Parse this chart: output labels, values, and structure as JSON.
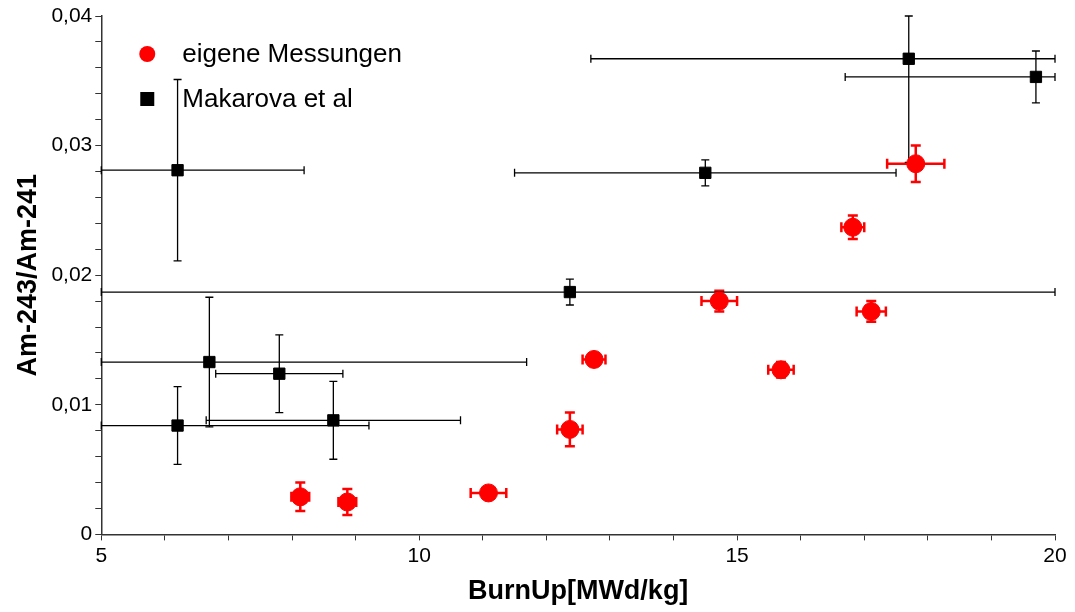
{
  "chart_data": {
    "type": "scatter",
    "xlabel": "BurnUp[MWd/kg]",
    "ylabel": "Am-243/Am-241",
    "xlim": [
      5,
      20
    ],
    "xticks": [
      5,
      {
        "value": 6,
        "label": null
      },
      {
        "value": 7,
        "label": null
      },
      {
        "value": 8,
        "label": null
      },
      {
        "value": 9,
        "label": null
      },
      10,
      {
        "value": 11,
        "label": null
      },
      {
        "value": 12,
        "label": null
      },
      {
        "value": 13,
        "label": null
      },
      {
        "value": 14,
        "label": null
      },
      15,
      {
        "value": 16,
        "label": null
      },
      {
        "value": 17,
        "label": null
      },
      {
        "value": 18,
        "label": null
      },
      {
        "value": 19,
        "label": null
      },
      20
    ],
    "ylim": [
      0,
      0.04
    ],
    "yticks": [
      {
        "value": 0,
        "label": "0"
      },
      {
        "value": 0.002,
        "label": null
      },
      {
        "value": 0.004,
        "label": null
      },
      {
        "value": 0.006,
        "label": null
      },
      {
        "value": 0.008,
        "label": null
      },
      {
        "value": 0.01,
        "label": "0,01"
      },
      {
        "value": 0.012,
        "label": null
      },
      {
        "value": 0.014,
        "label": null
      },
      {
        "value": 0.016,
        "label": null
      },
      {
        "value": 0.018,
        "label": null
      },
      {
        "value": 0.02,
        "label": "0,02"
      },
      {
        "value": 0.022,
        "label": null
      },
      {
        "value": 0.024,
        "label": null
      },
      {
        "value": 0.026,
        "label": null
      },
      {
        "value": 0.028,
        "label": null
      },
      {
        "value": 0.03,
        "label": "0,03"
      },
      {
        "value": 0.032,
        "label": null
      },
      {
        "value": 0.034,
        "label": null
      },
      {
        "value": 0.036,
        "label": null
      },
      {
        "value": 0.038,
        "label": null
      },
      {
        "value": 0.04,
        "label": "0,04"
      }
    ],
    "grid": false,
    "legend": "top left",
    "series": [
      {
        "name": "eigene Messungen",
        "color": "#ff0000",
        "marker": "circle",
        "x": [
          8.13,
          8.87,
          11.09,
          12.37,
          12.75,
          14.72,
          15.69,
          17.11,
          16.82,
          17.81
        ],
        "values": [
          0.0029,
          0.0025,
          0.0032,
          0.0081,
          0.0135,
          0.018,
          0.0127,
          0.0172,
          0.0237,
          0.0286
        ],
        "errors": [
          0.0011,
          0.001,
          null,
          0.0013,
          0.0005,
          0.0008,
          0.0006,
          0.0008,
          0.0009,
          0.0014
        ],
        "xerrors": [
          0.14,
          0.14,
          0.28,
          0.2,
          0.18,
          0.28,
          0.2,
          0.23,
          0.18,
          0.45
        ]
      },
      {
        "name": "Makarova et al",
        "color": "#000000",
        "marker": "square",
        "x": [
          6.2,
          12.37,
          6.7,
          7.8,
          6.2,
          8.65,
          14.5,
          17.7,
          19.7
        ],
        "values": [
          0.0281,
          0.0187,
          0.0133,
          0.0124,
          0.0084,
          0.0088,
          0.0279,
          0.0367,
          0.0353
        ],
        "errors": [
          0.007,
          0.001,
          0.005,
          0.003,
          0.003,
          0.003,
          0.001,
          [
            0.0287,
            0.04
          ],
          0.002
        ],
        "xerrors": [
          [
            5,
            8.19
          ],
          [
            5,
            20
          ],
          [
            5,
            11.69
          ],
          1.0,
          [
            5,
            9.21
          ],
          2.0,
          3.0,
          [
            12.7,
            20
          ],
          [
            16.7,
            20
          ]
        ]
      }
    ]
  }
}
